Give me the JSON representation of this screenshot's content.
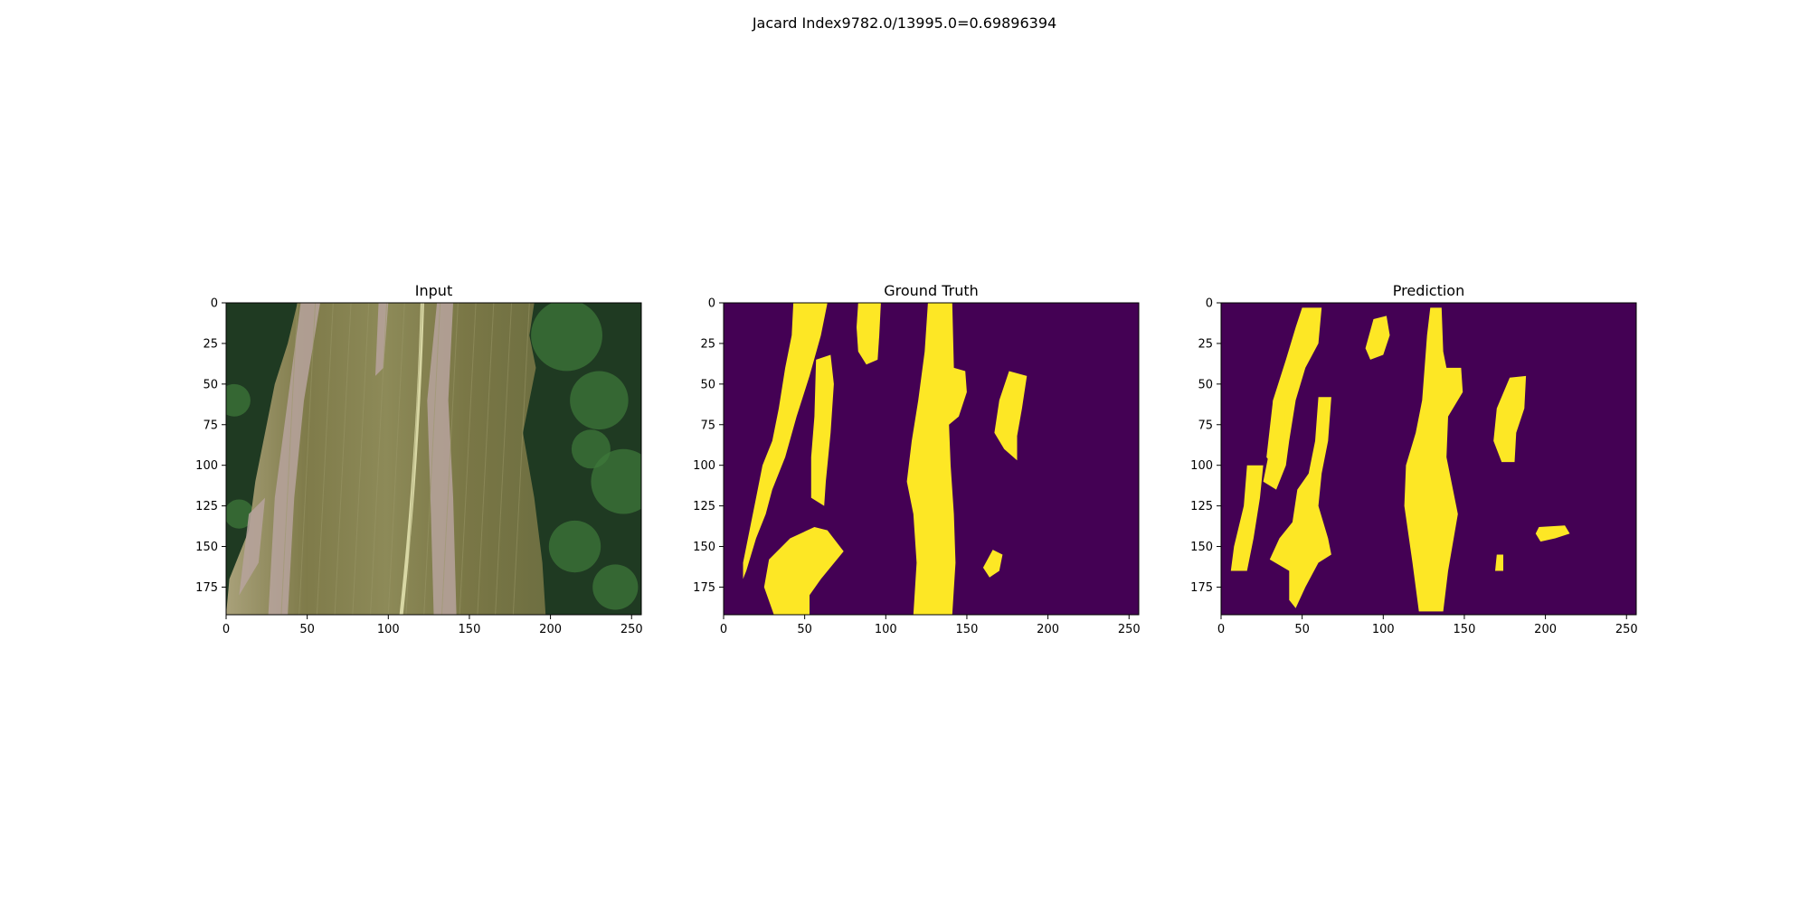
{
  "suptitle": "Jacard Index9782.0/13995.0=0.69896394",
  "colors": {
    "mask_background": "#440154",
    "mask_foreground": "#fde725",
    "axis": "#000000",
    "leaf_base": "#7c7a48",
    "foliage_dark": "#1f3a22",
    "foliage_light": "#3f7a3a",
    "lesion": "#b7a39e"
  },
  "chart_data": [
    {
      "type": "heatmap",
      "kind": "image",
      "title": "Input",
      "xlim": [
        0,
        256
      ],
      "ylim": [
        192,
        0
      ],
      "xticks": [
        0,
        50,
        100,
        150,
        200,
        250
      ],
      "yticks": [
        0,
        25,
        50,
        75,
        100,
        125,
        150,
        175
      ],
      "description": "RGB photo of a green leaf with pale lesion streaks"
    },
    {
      "type": "heatmap",
      "kind": "mask",
      "title": "Ground Truth",
      "xlim": [
        0,
        256
      ],
      "ylim": [
        192,
        0
      ],
      "xticks": [
        0,
        50,
        100,
        150,
        200,
        250
      ],
      "yticks": [
        0,
        25,
        50,
        75,
        100,
        125,
        150,
        175
      ],
      "regions": [
        [
          [
            43,
            0
          ],
          [
            64,
            0
          ],
          [
            60,
            20
          ],
          [
            53,
            45
          ],
          [
            45,
            70
          ],
          [
            38,
            95
          ],
          [
            30,
            115
          ],
          [
            26,
            130
          ],
          [
            20,
            145
          ],
          [
            14,
            165
          ],
          [
            12,
            170
          ],
          [
            12,
            160
          ],
          [
            16,
            140
          ],
          [
            20,
            120
          ],
          [
            24,
            100
          ],
          [
            30,
            85
          ],
          [
            34,
            65
          ],
          [
            38,
            40
          ],
          [
            42,
            20
          ]
        ],
        [
          [
            57,
            35
          ],
          [
            66,
            32
          ],
          [
            68,
            50
          ],
          [
            66,
            80
          ],
          [
            63,
            110
          ],
          [
            62,
            125
          ],
          [
            54,
            120
          ],
          [
            54,
            95
          ],
          [
            56,
            70
          ]
        ],
        [
          [
            83,
            0
          ],
          [
            97,
            0
          ],
          [
            96,
            20
          ],
          [
            95,
            35
          ],
          [
            88,
            38
          ],
          [
            83,
            30
          ],
          [
            82,
            15
          ]
        ],
        [
          [
            126,
            0
          ],
          [
            141,
            0
          ],
          [
            142,
            40
          ],
          [
            149,
            42
          ],
          [
            150,
            55
          ],
          [
            145,
            70
          ],
          [
            139,
            75
          ],
          [
            140,
            100
          ],
          [
            142,
            130
          ],
          [
            143,
            160
          ],
          [
            141,
            192
          ],
          [
            117,
            192
          ],
          [
            119,
            160
          ],
          [
            117,
            130
          ],
          [
            113,
            110
          ],
          [
            116,
            85
          ],
          [
            120,
            60
          ],
          [
            124,
            30
          ]
        ],
        [
          [
            176,
            42
          ],
          [
            187,
            45
          ],
          [
            184,
            65
          ],
          [
            181,
            82
          ],
          [
            181,
            97
          ],
          [
            173,
            90
          ],
          [
            167,
            80
          ],
          [
            170,
            60
          ]
        ],
        [
          [
            41,
            145
          ],
          [
            56,
            138
          ],
          [
            64,
            140
          ],
          [
            74,
            153
          ],
          [
            60,
            170
          ],
          [
            53,
            180
          ],
          [
            53,
            192
          ],
          [
            31,
            192
          ],
          [
            25,
            175
          ],
          [
            28,
            158
          ]
        ],
        [
          [
            166,
            152
          ],
          [
            172,
            155
          ],
          [
            170,
            165
          ],
          [
            164,
            169
          ],
          [
            160,
            163
          ]
        ]
      ]
    },
    {
      "type": "heatmap",
      "kind": "mask",
      "title": "Prediction",
      "xlim": [
        0,
        256
      ],
      "ylim": [
        192,
        0
      ],
      "xticks": [
        0,
        50,
        100,
        150,
        200,
        250
      ],
      "yticks": [
        0,
        25,
        50,
        75,
        100,
        125,
        150,
        175
      ],
      "regions": [
        [
          [
            50,
            3
          ],
          [
            62,
            3
          ],
          [
            60,
            25
          ],
          [
            52,
            40
          ],
          [
            46,
            60
          ],
          [
            42,
            85
          ],
          [
            40,
            100
          ],
          [
            34,
            115
          ],
          [
            26,
            110
          ],
          [
            30,
            90
          ],
          [
            32,
            60
          ],
          [
            40,
            35
          ],
          [
            46,
            15
          ]
        ],
        [
          [
            32,
            60
          ],
          [
            40,
            60
          ],
          [
            38,
            95
          ],
          [
            32,
            100
          ],
          [
            28,
            95
          ]
        ],
        [
          [
            16,
            100
          ],
          [
            26,
            100
          ],
          [
            24,
            120
          ],
          [
            20,
            145
          ],
          [
            16,
            165
          ],
          [
            6,
            165
          ],
          [
            8,
            150
          ],
          [
            14,
            125
          ]
        ],
        [
          [
            60,
            58
          ],
          [
            68,
            58
          ],
          [
            66,
            85
          ],
          [
            62,
            105
          ],
          [
            60,
            125
          ],
          [
            66,
            145
          ],
          [
            68,
            155
          ],
          [
            60,
            160
          ],
          [
            52,
            175
          ],
          [
            46,
            188
          ],
          [
            42,
            183
          ],
          [
            42,
            165
          ],
          [
            30,
            158
          ],
          [
            36,
            145
          ],
          [
            44,
            135
          ],
          [
            47,
            115
          ],
          [
            54,
            105
          ],
          [
            58,
            85
          ]
        ],
        [
          [
            94,
            10
          ],
          [
            102,
            8
          ],
          [
            104,
            20
          ],
          [
            100,
            32
          ],
          [
            92,
            35
          ],
          [
            89,
            28
          ]
        ],
        [
          [
            129,
            3
          ],
          [
            136,
            3
          ],
          [
            137,
            30
          ],
          [
            139,
            40
          ],
          [
            148,
            40
          ],
          [
            149,
            55
          ],
          [
            140,
            70
          ],
          [
            139,
            95
          ],
          [
            146,
            130
          ],
          [
            140,
            165
          ],
          [
            137,
            190
          ],
          [
            122,
            190
          ],
          [
            118,
            160
          ],
          [
            113,
            125
          ],
          [
            114,
            100
          ],
          [
            120,
            80
          ],
          [
            124,
            60
          ],
          [
            127,
            20
          ]
        ],
        [
          [
            178,
            46
          ],
          [
            188,
            45
          ],
          [
            187,
            65
          ],
          [
            182,
            80
          ],
          [
            181,
            98
          ],
          [
            173,
            98
          ],
          [
            168,
            85
          ],
          [
            170,
            65
          ]
        ],
        [
          [
            196,
            138
          ],
          [
            212,
            137
          ],
          [
            215,
            142
          ],
          [
            206,
            145
          ],
          [
            197,
            147
          ],
          [
            194,
            142
          ]
        ],
        [
          [
            170,
            155
          ],
          [
            174,
            155
          ],
          [
            174,
            165
          ],
          [
            169,
            165
          ]
        ]
      ]
    }
  ]
}
